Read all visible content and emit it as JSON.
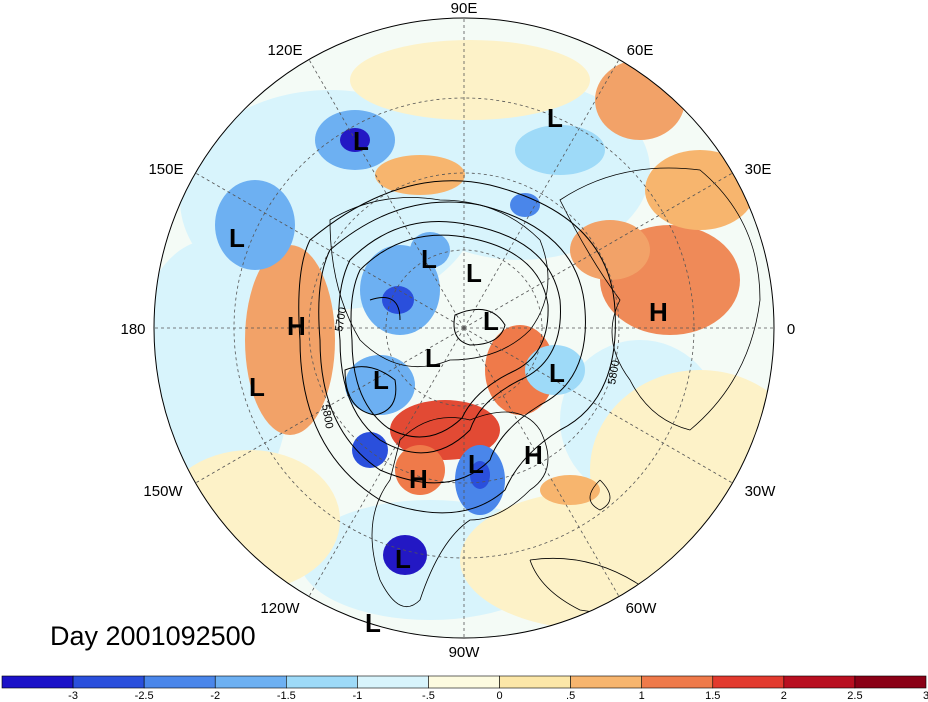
{
  "title": "Day 2001092500",
  "meridian_labels": [
    "90E",
    "60E",
    "30E",
    "0",
    "30W",
    "60W",
    "90W",
    "120W",
    "150W",
    "180",
    "150E",
    "120E"
  ],
  "contour_labels": [
    "5700",
    "5800",
    "5800"
  ],
  "pressure_centers": [
    "L",
    "L",
    "L",
    "L",
    "L",
    "L",
    "L",
    "L",
    "L",
    "L",
    "L",
    "L",
    "L",
    "H",
    "H",
    "H",
    "H"
  ],
  "colorbar": {
    "colors": [
      "#1b12c8",
      "#2a4fdc",
      "#4a86ea",
      "#6db0f2",
      "#9edaf8",
      "#d8f4fc",
      "#fdfbe0",
      "#fce7a8",
      "#f7b56e",
      "#ef7a4a",
      "#e23a2e",
      "#b80f20",
      "#8a0016"
    ],
    "labels": [
      "-3",
      "-2.5",
      "-2",
      "-1.5",
      "-1",
      "-.5",
      "0",
      ".5",
      "1",
      "1.5",
      "2",
      "2.5",
      "3"
    ]
  },
  "map_colors": {
    "background_anomaly": "#f4fbf4",
    "positive_weak": "#fbe3a8",
    "positive_mid": "#f2a268",
    "positive_strong": "#e24a34",
    "negative_weak": "#cfeefa",
    "negative_mid": "#8cc8ef",
    "negative_strong": "#3a6fe0",
    "negative_extreme": "#2318c4"
  }
}
